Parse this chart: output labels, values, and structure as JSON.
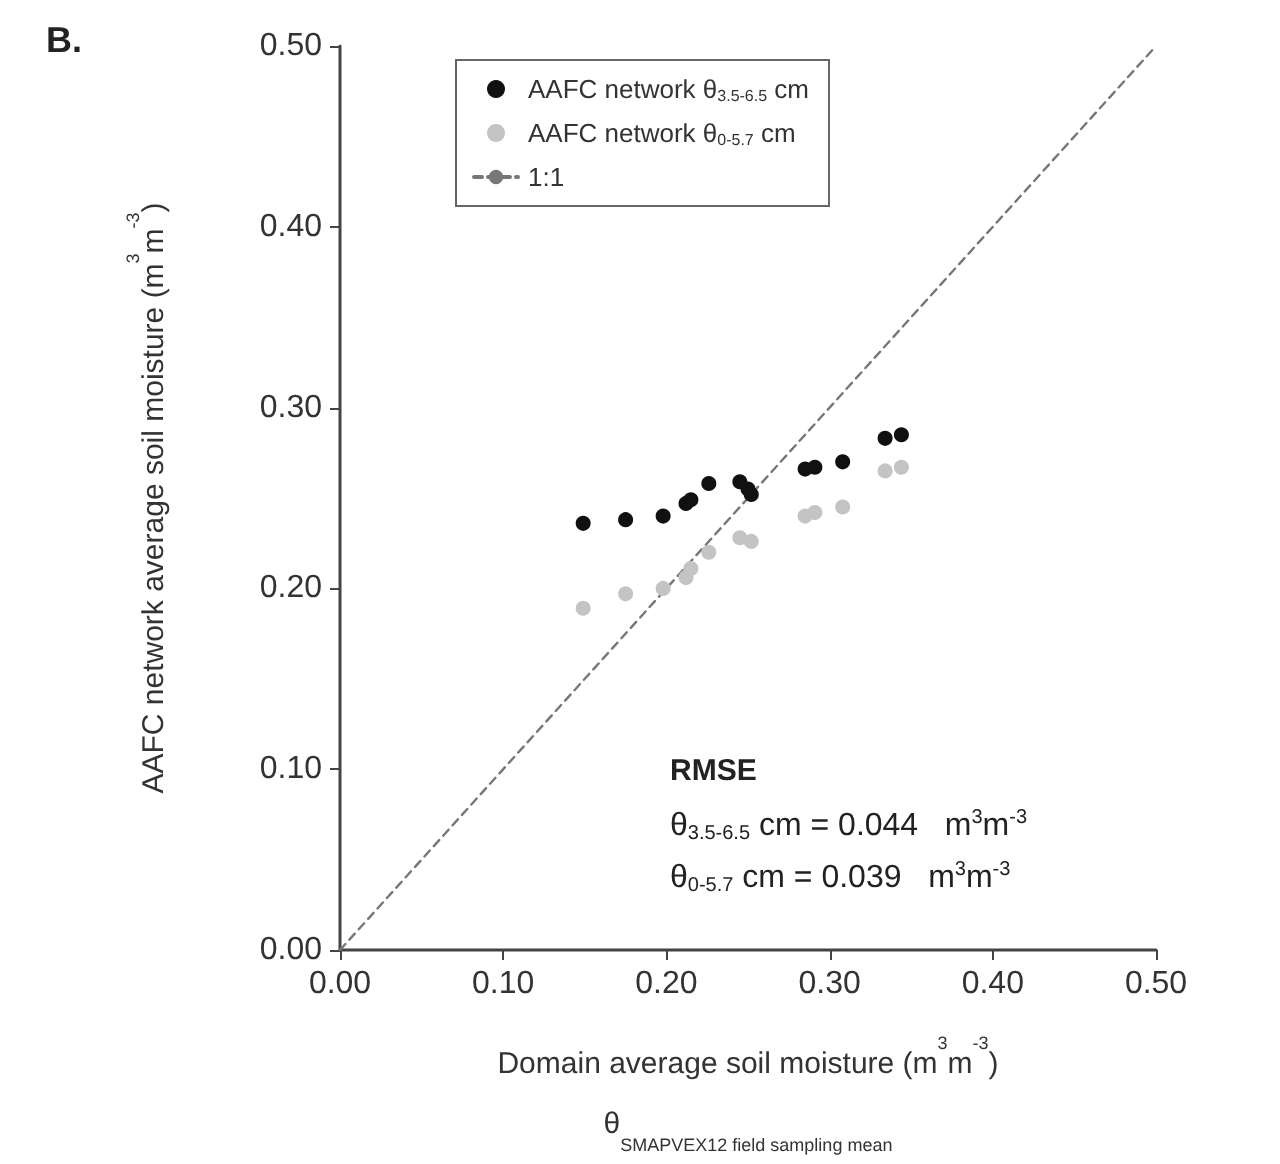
{
  "chart_data": {
    "type": "scatter",
    "title": "B.",
    "xlabel": "Domain average soil moisture (m$^{3}$m$^{-3}$)\nθ$_{SMAPVEX12 field sampling mean}$",
    "ylabel": "AAFC network average soil moisture (m$^{3}$m$^{-3}$)",
    "xlim": [
      0,
      0.5
    ],
    "ylim": [
      0,
      0.5
    ],
    "xticks": [
      {
        "value": 0,
        "label": "0.00"
      },
      {
        "value": 0.1,
        "label": "0.10"
      },
      {
        "value": 0.2,
        "label": "0.20"
      },
      {
        "value": 0.3,
        "label": "0.30"
      },
      {
        "value": 0.4,
        "label": "0.40"
      },
      {
        "value": 0.5,
        "label": "0.50"
      }
    ],
    "yticks": [
      {
        "value": 0,
        "label": "0.00"
      },
      {
        "value": 0.1,
        "label": "0.10"
      },
      {
        "value": 0.2,
        "label": "0.20"
      },
      {
        "value": 0.3,
        "label": "0.30"
      },
      {
        "value": 0.4,
        "label": "0.40"
      },
      {
        "value": 0.5,
        "label": "0.50"
      }
    ],
    "series": [
      {
        "name": "AAFC network θ$_{3.5-6.5}$ cm",
        "color": "#111111",
        "x": [
          0.149,
          0.175,
          0.198,
          0.212,
          0.215,
          0.226,
          0.245,
          0.25,
          0.252,
          0.285,
          0.291,
          0.308,
          0.334,
          0.344
        ],
        "values": [
          0.236,
          0.238,
          0.24,
          0.247,
          0.249,
          0.258,
          0.259,
          0.255,
          0.252,
          0.266,
          0.267,
          0.27,
          0.283,
          0.285
        ]
      },
      {
        "name": "AAFC network θ$_{0-5.7}$ cm",
        "color": "#c4c4c4",
        "x": [
          0.149,
          0.175,
          0.198,
          0.212,
          0.215,
          0.226,
          0.245,
          0.252,
          0.285,
          0.291,
          0.308,
          0.334,
          0.344
        ],
        "values": [
          0.189,
          0.197,
          0.2,
          0.206,
          0.211,
          0.22,
          0.228,
          0.226,
          0.24,
          0.242,
          0.245,
          0.265,
          0.267
        ]
      },
      {
        "name": "1:1",
        "type": "line",
        "color": "#777777",
        "line_style": "dashed",
        "marker": "none",
        "x": [
          0,
          0.5
        ],
        "values": [
          0,
          0.5
        ]
      }
    ],
    "annotations": [
      "RMSE",
      "θ$_{3.5-6.5}$ cm = 0.044   m$^{3}$m$^{-3}$",
      "θ$_{0-5.7}$ cm = 0.039   m$^{3}$m$^{-3}$"
    ],
    "marker": "circle",
    "grid": false,
    "legend": "top left"
  }
}
